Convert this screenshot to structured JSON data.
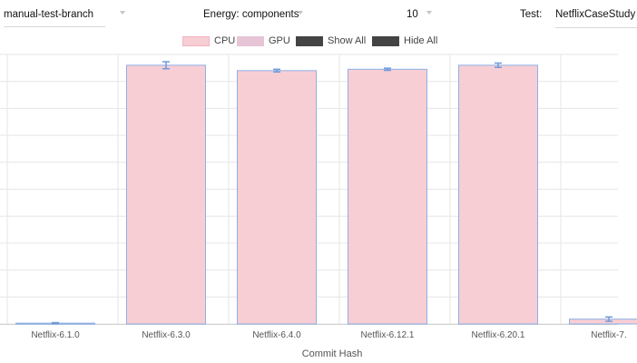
{
  "controls": {
    "branch_value": "manual-test-branch",
    "metric_value": "Energy: components",
    "count_value": "10",
    "test_label": "Test:",
    "test_value": "NetflixCaseStudy"
  },
  "legend": {
    "cpu_label": "CPU",
    "gpu_label": "GPU",
    "show_all_label": "Show All",
    "hide_all_label": "Hide All"
  },
  "colors": {
    "cpu_fill": "#f8ced5",
    "cpu_swatch_border": "#f2b3bf",
    "gpu_fill": "#e7c4d6",
    "bar_border": "#8db0e6",
    "error_bar": "#6f9bd8",
    "grid": "#e6e6e6",
    "toggle_swatch": "#444444"
  },
  "chart_data": {
    "type": "bar",
    "xlabel": "Commit Hash",
    "ylabel": "",
    "categories": [
      "Netflix-6.1.0",
      "Netflix-6.3.0",
      "Netflix-6.4.0",
      "Netflix-6.12.1",
      "Netflix-6.20.1",
      "Netflix-7."
    ],
    "ylim": [
      0,
      100
    ],
    "grid": true,
    "legend_position": "top-center",
    "series": [
      {
        "name": "CPU",
        "values": [
          0.3,
          96,
          94,
          94.5,
          96,
          1.8
        ],
        "error": [
          0.2,
          1.3,
          0.5,
          0.4,
          0.8,
          0.8
        ]
      },
      {
        "name": "GPU",
        "values": [
          0,
          0,
          0,
          0,
          0,
          0
        ],
        "error": [
          0,
          0,
          0,
          0,
          0,
          0
        ]
      }
    ]
  }
}
